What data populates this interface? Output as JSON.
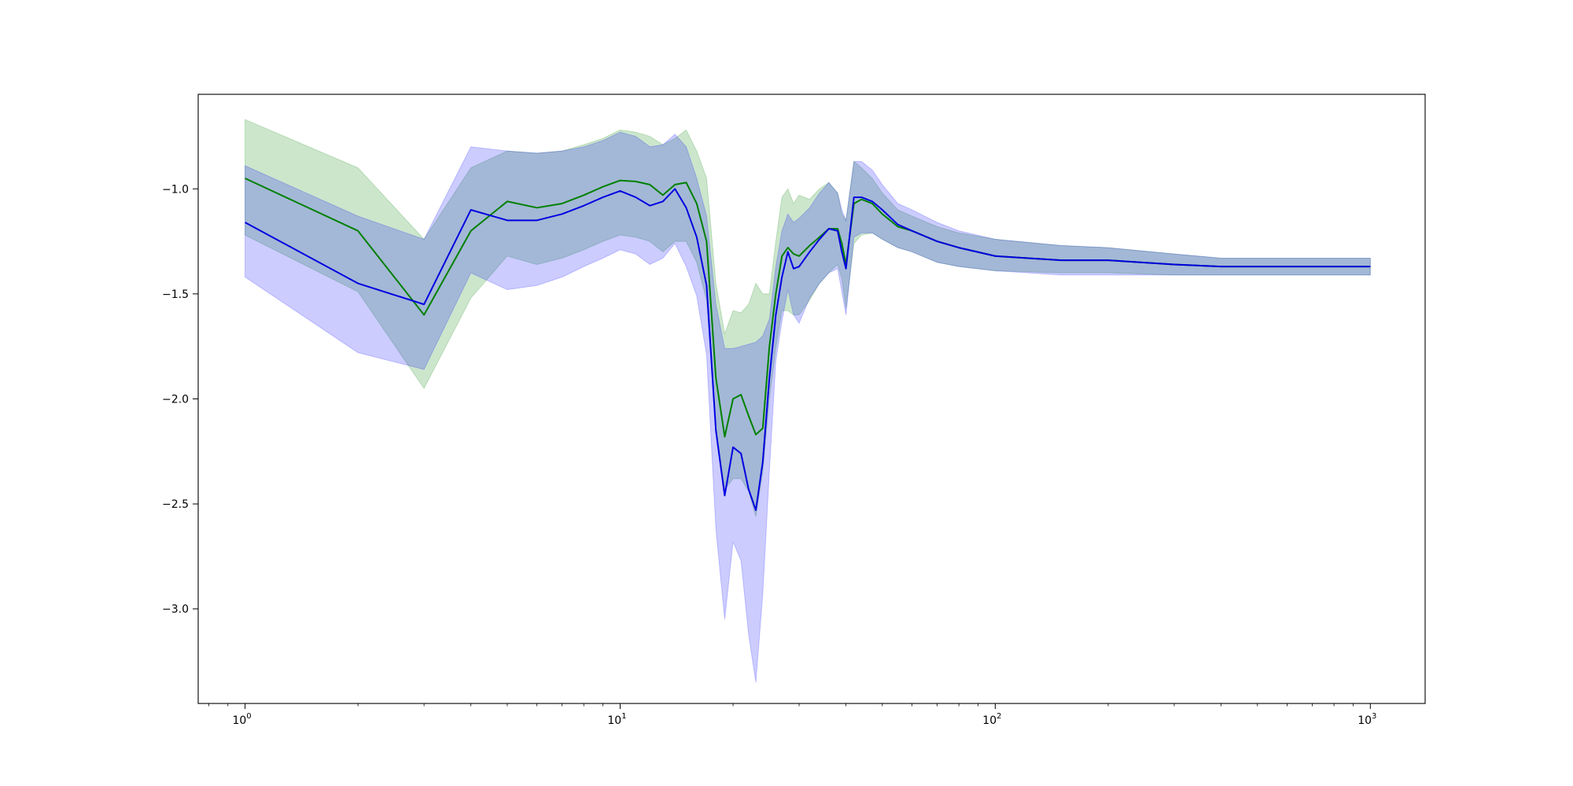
{
  "chart_data": {
    "type": "line",
    "title": "",
    "xlabel": "",
    "ylabel": "",
    "xscale": "log",
    "xlim": [
      0.75,
      1400
    ],
    "ylim": [
      -3.45,
      -0.55
    ],
    "grid": false,
    "legend": "none",
    "x_ticks": [
      {
        "value": 1,
        "base": "10",
        "exp": "0"
      },
      {
        "value": 10,
        "base": "10",
        "exp": "1"
      },
      {
        "value": 100,
        "base": "10",
        "exp": "2"
      },
      {
        "value": 1000,
        "base": "10",
        "exp": "3"
      }
    ],
    "y_ticks": [
      {
        "value": -1.0,
        "label": "−1.0"
      },
      {
        "value": -1.5,
        "label": "−1.5"
      },
      {
        "value": -2.0,
        "label": "−2.0"
      },
      {
        "value": -2.5,
        "label": "−2.5"
      },
      {
        "value": -3.0,
        "label": "−3.0"
      }
    ],
    "series": [
      {
        "color": "#008000",
        "band_color": "#008000",
        "band_opacity": 0.2,
        "x": [
          1,
          2,
          3,
          4,
          5,
          6,
          7,
          8,
          9,
          10,
          11,
          12,
          13,
          14,
          15,
          16,
          17,
          18,
          19,
          20,
          21,
          22,
          23,
          24,
          25,
          26,
          27,
          28,
          29,
          30,
          32,
          34,
          36,
          38,
          39,
          40,
          42,
          44,
          47,
          50,
          55,
          60,
          70,
          80,
          100,
          150,
          200,
          300,
          400,
          500,
          700,
          1000
        ],
        "y": [
          -0.95,
          -1.2,
          -1.6,
          -1.2,
          -1.06,
          -1.09,
          -1.07,
          -1.03,
          -0.99,
          -0.96,
          -0.965,
          -0.98,
          -1.03,
          -0.98,
          -0.97,
          -1.07,
          -1.25,
          -1.9,
          -2.18,
          -2.0,
          -1.98,
          -2.08,
          -2.17,
          -2.14,
          -1.75,
          -1.5,
          -1.32,
          -1.28,
          -1.31,
          -1.32,
          -1.27,
          -1.23,
          -1.19,
          -1.19,
          -1.26,
          -1.36,
          -1.07,
          -1.05,
          -1.07,
          -1.12,
          -1.18,
          -1.2,
          -1.25,
          -1.28,
          -1.32,
          -1.34,
          -1.34,
          -1.36,
          -1.37,
          -1.37,
          -1.37,
          -1.37
        ],
        "upper": [
          -0.67,
          -0.9,
          -1.24,
          -0.9,
          -0.82,
          -0.83,
          -0.82,
          -0.79,
          -0.76,
          -0.72,
          -0.73,
          -0.75,
          -0.79,
          -0.76,
          -0.72,
          -0.82,
          -0.95,
          -1.45,
          -1.69,
          -1.58,
          -1.59,
          -1.55,
          -1.45,
          -1.5,
          -1.5,
          -1.25,
          -1.04,
          -1.0,
          -1.07,
          -1.03,
          -1.05,
          -1.0,
          -0.97,
          -1.02,
          -1.12,
          -1.15,
          -0.87,
          -0.9,
          -0.95,
          -1.02,
          -1.1,
          -1.13,
          -1.18,
          -1.21,
          -1.24,
          -1.27,
          -1.28,
          -1.31,
          -1.33,
          -1.33,
          -1.33,
          -1.33
        ],
        "lower": [
          -1.22,
          -1.49,
          -1.95,
          -1.52,
          -1.32,
          -1.36,
          -1.33,
          -1.29,
          -1.25,
          -1.22,
          -1.23,
          -1.25,
          -1.3,
          -1.25,
          -1.25,
          -1.35,
          -1.53,
          -2.14,
          -2.43,
          -2.38,
          -2.38,
          -2.44,
          -2.56,
          -2.35,
          -2.0,
          -1.76,
          -1.58,
          -1.58,
          -1.6,
          -1.6,
          -1.53,
          -1.45,
          -1.4,
          -1.36,
          -1.43,
          -1.57,
          -1.26,
          -1.22,
          -1.21,
          -1.24,
          -1.28,
          -1.3,
          -1.35,
          -1.37,
          -1.39,
          -1.4,
          -1.4,
          -1.41,
          -1.41,
          -1.41,
          -1.41,
          -1.41
        ]
      },
      {
        "color": "#0000e0",
        "band_color": "#0000ff",
        "band_opacity": 0.2,
        "x": [
          1,
          2,
          3,
          4,
          5,
          6,
          7,
          8,
          9,
          10,
          11,
          12,
          13,
          14,
          15,
          16,
          17,
          18,
          19,
          20,
          21,
          22,
          23,
          24,
          25,
          26,
          27,
          28,
          29,
          30,
          32,
          34,
          36,
          38,
          39,
          40,
          42,
          44,
          47,
          50,
          55,
          60,
          70,
          80,
          100,
          150,
          200,
          300,
          400,
          500,
          700,
          1000
        ],
        "y": [
          -1.16,
          -1.45,
          -1.55,
          -1.1,
          -1.15,
          -1.15,
          -1.12,
          -1.08,
          -1.04,
          -1.01,
          -1.04,
          -1.08,
          -1.06,
          -1.0,
          -1.09,
          -1.23,
          -1.46,
          -2.15,
          -2.46,
          -2.23,
          -2.26,
          -2.43,
          -2.53,
          -2.3,
          -1.9,
          -1.6,
          -1.42,
          -1.3,
          -1.38,
          -1.37,
          -1.3,
          -1.24,
          -1.19,
          -1.2,
          -1.3,
          -1.38,
          -1.04,
          -1.04,
          -1.06,
          -1.1,
          -1.17,
          -1.2,
          -1.25,
          -1.28,
          -1.32,
          -1.34,
          -1.34,
          -1.36,
          -1.37,
          -1.37,
          -1.37,
          -1.37
        ],
        "upper": [
          -0.89,
          -1.13,
          -1.24,
          -0.8,
          -0.82,
          -0.83,
          -0.82,
          -0.8,
          -0.77,
          -0.73,
          -0.75,
          -0.8,
          -0.79,
          -0.74,
          -0.8,
          -0.95,
          -1.13,
          -1.55,
          -1.76,
          -1.76,
          -1.75,
          -1.74,
          -1.73,
          -1.7,
          -1.62,
          -1.37,
          -1.2,
          -1.12,
          -1.16,
          -1.14,
          -1.09,
          -1.02,
          -0.97,
          -1.02,
          -1.1,
          -1.15,
          -0.87,
          -0.87,
          -0.91,
          -0.98,
          -1.07,
          -1.1,
          -1.16,
          -1.2,
          -1.24,
          -1.27,
          -1.28,
          -1.31,
          -1.33,
          -1.33,
          -1.33,
          -1.33
        ],
        "lower": [
          -1.42,
          -1.78,
          -1.86,
          -1.4,
          -1.48,
          -1.46,
          -1.42,
          -1.37,
          -1.33,
          -1.29,
          -1.31,
          -1.36,
          -1.33,
          -1.26,
          -1.37,
          -1.51,
          -1.79,
          -2.62,
          -3.05,
          -2.68,
          -2.77,
          -3.12,
          -3.35,
          -2.93,
          -2.34,
          -1.82,
          -1.63,
          -1.48,
          -1.6,
          -1.64,
          -1.52,
          -1.45,
          -1.4,
          -1.38,
          -1.49,
          -1.6,
          -1.23,
          -1.21,
          -1.21,
          -1.24,
          -1.28,
          -1.3,
          -1.35,
          -1.37,
          -1.39,
          -1.41,
          -1.41,
          -1.41,
          -1.41,
          -1.41,
          -1.41,
          -1.41
        ]
      }
    ]
  }
}
